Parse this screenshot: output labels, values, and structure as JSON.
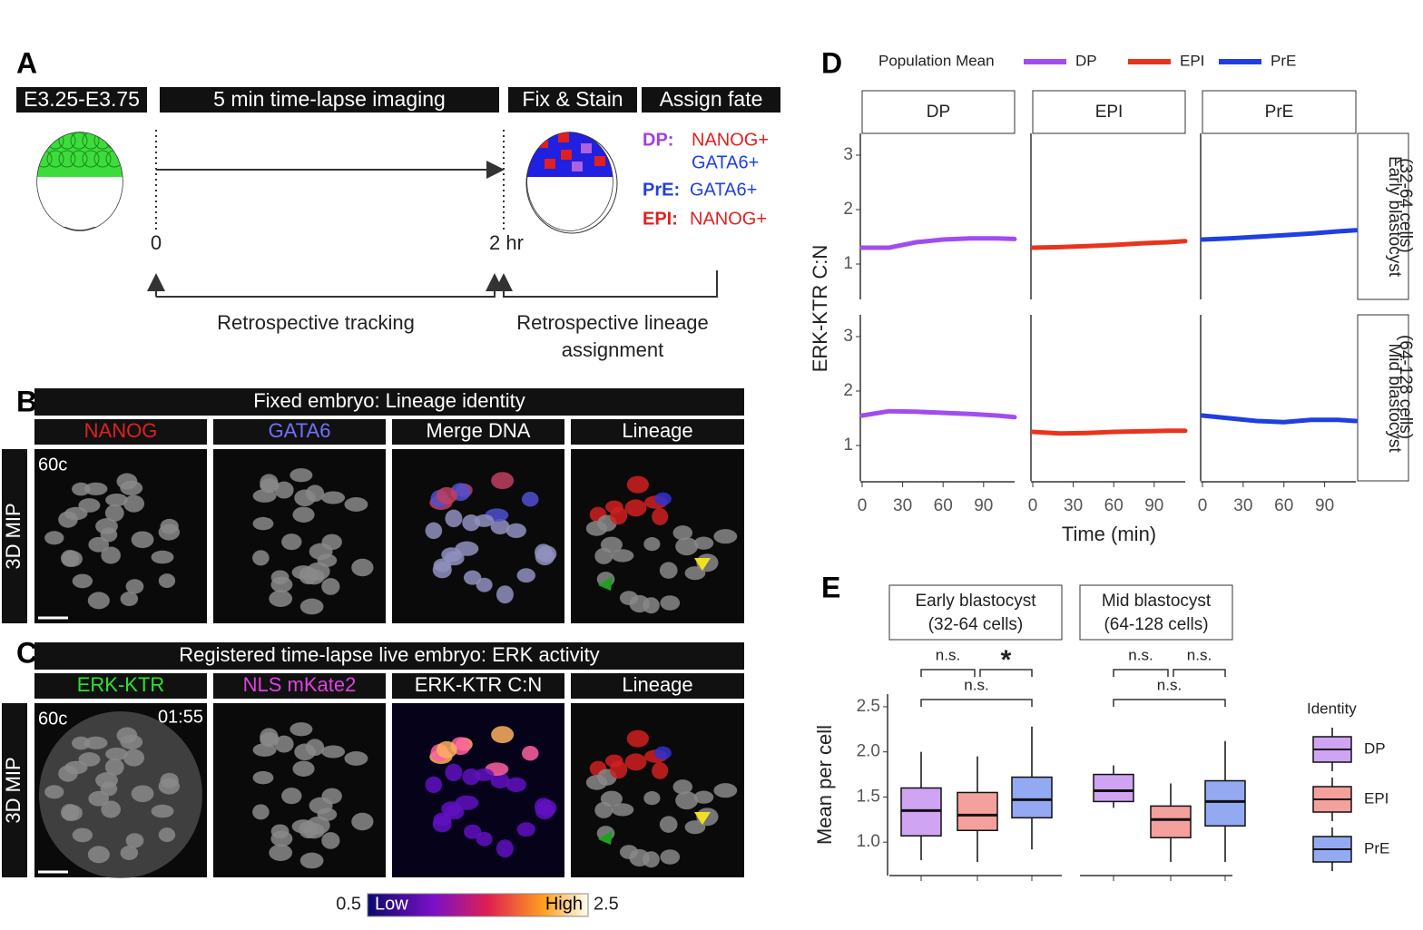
{
  "panel_labels": [
    "A",
    "B",
    "C",
    "D",
    "E"
  ],
  "A": {
    "stages": [
      "E3.25-E3.75",
      "5 min time-lapse imaging",
      "Fix & Stain",
      "Assign fate"
    ],
    "start": 0,
    "end": "2 hr",
    "fates": [
      {
        "name": "DP:",
        "markers": [
          "NANOG+",
          "GATA6+"
        ]
      },
      {
        "name": "PrE:",
        "markers": [
          "GATA6+"
        ]
      },
      {
        "name": "EPI:",
        "markers": [
          "NANOG+"
        ]
      }
    ],
    "tracking": "Retrospective tracking",
    "assignment": [
      "Retrospective lineage",
      "assignment"
    ]
  },
  "B": {
    "title": "Fixed embryo: Lineage identity",
    "columns": [
      "NANOG",
      "GATA6",
      "Merge DNA",
      "Lineage"
    ],
    "side": "3D MIP",
    "stage": "60c"
  },
  "C": {
    "title": "Registered time-lapse live embryo: ERK activity",
    "columns": [
      "ERK-KTR",
      "NLS mKate2",
      "ERK-KTR C:N",
      "Lineage"
    ],
    "side": "3D MIP",
    "stage": "60c",
    "time": "01:55",
    "colorbar": {
      "min": 0.5,
      "max": 2.5,
      "low": "Low",
      "high": "High"
    }
  },
  "D": {
    "legend_title": "Population Mean",
    "series": [
      {
        "name": "DP",
        "color": "#a24cf0"
      },
      {
        "name": "EPI",
        "color": "#e8341c"
      },
      {
        "name": "PrE",
        "color": "#1f3fe0"
      }
    ],
    "y_label": "ERK-KTR C:N",
    "x_label": "Time (min)",
    "x": [
      0,
      20,
      40,
      60,
      80,
      100,
      113
    ],
    "xlim": [
      0,
      113
    ],
    "xticks": [
      0,
      30,
      60,
      90
    ],
    "ylim": [
      0.35,
      3.4
    ],
    "yticks": [
      1,
      2,
      3
    ],
    "rows": [
      {
        "strip": [
          "Early blastocyst",
          "(32-64 cells)"
        ],
        "means": [
          [
            1.3,
            1.3,
            1.4,
            1.45,
            1.47,
            1.47,
            1.46
          ],
          [
            1.3,
            1.31,
            1.33,
            1.35,
            1.38,
            1.4,
            1.42
          ],
          [
            1.45,
            1.47,
            1.5,
            1.53,
            1.56,
            1.6,
            1.62
          ]
        ]
      },
      {
        "strip": [
          "Mid blastocyst",
          "(64-128 cells)"
        ],
        "means": [
          [
            1.55,
            1.63,
            1.62,
            1.6,
            1.58,
            1.55,
            1.52
          ],
          [
            1.25,
            1.22,
            1.23,
            1.25,
            1.26,
            1.27,
            1.27
          ],
          [
            1.55,
            1.5,
            1.45,
            1.43,
            1.47,
            1.47,
            1.45
          ]
        ]
      }
    ]
  },
  "E": {
    "y_label": "Mean per cell",
    "ylim": [
      0.63,
      2.64
    ],
    "yticks": [
      {
        "value": 1,
        "label": "1.0"
      },
      1.5,
      {
        "value": 2,
        "label": "2.0"
      },
      2.5
    ],
    "legend_title": "Identity",
    "groups": [
      {
        "name": "DP",
        "fill": "#cfa4f2"
      },
      {
        "name": "EPI",
        "fill": "#f4a09c"
      },
      {
        "name": "PrE",
        "fill": "#93a9f2"
      }
    ],
    "facets": [
      {
        "strip": [
          "Early blastocyst",
          "(32-64 cells)"
        ],
        "boxes": [
          [
            0.8,
            1.07,
            1.35,
            1.6,
            2.0
          ],
          [
            0.78,
            1.13,
            1.3,
            1.55,
            1.95
          ],
          [
            0.92,
            1.27,
            1.47,
            1.72,
            2.28
          ]
        ],
        "tests": [
          "n.s.",
          "*",
          "n.s."
        ]
      },
      {
        "strip": [
          "Mid blastocyst",
          "(64-128 cells)"
        ],
        "boxes": [
          [
            1.38,
            1.45,
            1.57,
            1.75,
            1.85
          ],
          [
            0.78,
            1.05,
            1.25,
            1.4,
            1.65
          ],
          [
            0.78,
            1.18,
            1.45,
            1.68,
            2.12
          ]
        ],
        "tests": [
          "n.s.",
          "n.s.",
          "n.s."
        ]
      }
    ]
  }
}
